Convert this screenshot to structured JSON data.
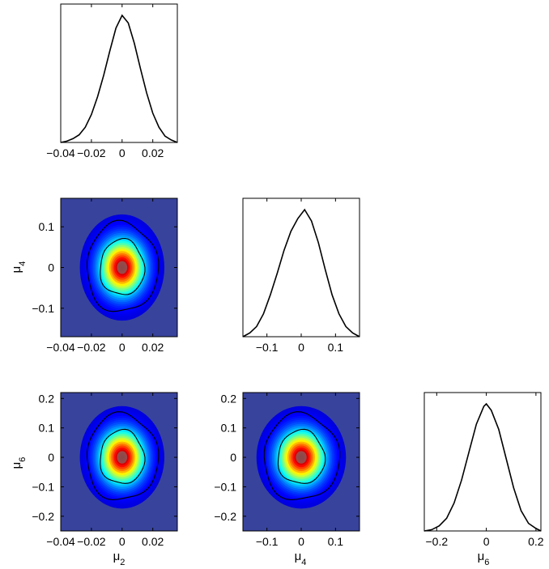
{
  "chart_data": [
    {
      "type": "line",
      "panel": "1D marginal mu2",
      "xlim": [
        -0.04,
        0.036
      ],
      "xticks": [
        -0.04,
        -0.02,
        0,
        0.02
      ],
      "xtick_labels": [
        "−0.04",
        "−0.02",
        "0",
        "0.02"
      ],
      "x": [
        -0.04,
        -0.036,
        -0.032,
        -0.028,
        -0.024,
        -0.02,
        -0.016,
        -0.012,
        -0.008,
        -0.004,
        0,
        0.004,
        0.008,
        0.012,
        0.016,
        0.02,
        0.024,
        0.028,
        0.032,
        0.036
      ],
      "y": [
        0.0,
        0.01,
        0.03,
        0.06,
        0.12,
        0.22,
        0.36,
        0.53,
        0.72,
        0.9,
        1.0,
        0.94,
        0.78,
        0.58,
        0.39,
        0.23,
        0.12,
        0.05,
        0.02,
        0.0
      ]
    },
    {
      "type": "line",
      "panel": "1D marginal mu4",
      "xlim": [
        -0.17,
        0.17
      ],
      "xticks": [
        -0.1,
        0,
        0.1
      ],
      "xtick_labels": [
        "−0.1",
        "0",
        "0.1"
      ],
      "x": [
        -0.17,
        -0.15,
        -0.13,
        -0.11,
        -0.09,
        -0.07,
        -0.05,
        -0.03,
        -0.01,
        0.01,
        0.03,
        0.05,
        0.07,
        0.09,
        0.11,
        0.13,
        0.15,
        0.17
      ],
      "y": [
        0.0,
        0.03,
        0.08,
        0.18,
        0.33,
        0.5,
        0.68,
        0.83,
        0.93,
        1.0,
        0.91,
        0.74,
        0.53,
        0.33,
        0.18,
        0.08,
        0.03,
        0.0
      ]
    },
    {
      "type": "line",
      "panel": "1D marginal mu6",
      "xlim": [
        -0.25,
        0.22
      ],
      "xticks": [
        -0.2,
        0,
        0.2
      ],
      "xtick_labels": [
        "−0.2",
        "0",
        "0.2"
      ],
      "x": [
        -0.25,
        -0.22,
        -0.19,
        -0.16,
        -0.13,
        -0.1,
        -0.07,
        -0.04,
        -0.01,
        0.0,
        0.02,
        0.05,
        0.08,
        0.11,
        0.14,
        0.17,
        0.2,
        0.22
      ],
      "y": [
        0.0,
        0.01,
        0.04,
        0.1,
        0.22,
        0.4,
        0.62,
        0.84,
        0.98,
        1.0,
        0.95,
        0.8,
        0.57,
        0.34,
        0.16,
        0.06,
        0.02,
        0.0
      ]
    },
    {
      "type": "heatmap",
      "panel": "2D mu2 vs mu4",
      "xlim": [
        -0.04,
        0.036
      ],
      "ylim": [
        -0.17,
        0.17
      ],
      "xticks": [
        -0.04,
        -0.02,
        0,
        0.02
      ],
      "xtick_labels": [
        "−0.04",
        "−0.02",
        "0",
        "0.02"
      ],
      "yticks": [
        0.1,
        0,
        -0.1
      ],
      "ytick_labels": [
        "0.1",
        "0",
        "−0.1"
      ],
      "center": [
        0.0,
        0.0
      ],
      "sigma": [
        0.0095,
        0.045
      ],
      "contours": [
        "68%",
        "95%"
      ]
    },
    {
      "type": "heatmap",
      "panel": "2D mu2 vs mu6",
      "xlim": [
        -0.04,
        0.036
      ],
      "ylim": [
        -0.25,
        0.22
      ],
      "xticks": [
        -0.04,
        -0.02,
        0,
        0.02
      ],
      "xtick_labels": [
        "−0.04",
        "−0.02",
        "0",
        "0.02"
      ],
      "yticks": [
        0.2,
        0.1,
        0,
        -0.1,
        -0.2
      ],
      "ytick_labels": [
        "0.2",
        "0.1",
        "0",
        "−0.1",
        "−0.2"
      ],
      "center": [
        0.0,
        0.0
      ],
      "sigma": [
        0.0095,
        0.06
      ],
      "contours": [
        "68%",
        "95%"
      ]
    },
    {
      "type": "heatmap",
      "panel": "2D mu4 vs mu6",
      "xlim": [
        -0.17,
        0.17
      ],
      "ylim": [
        -0.25,
        0.22
      ],
      "xticks": [
        -0.1,
        0,
        0.1
      ],
      "xtick_labels": [
        "−0.1",
        "0",
        "0.1"
      ],
      "yticks": [
        0.2,
        0.1,
        0,
        -0.1,
        -0.2
      ],
      "ytick_labels": [
        "0.2",
        "0.1",
        "0",
        "−0.1",
        "−0.2"
      ],
      "center": [
        0.0,
        0.0
      ],
      "sigma": [
        0.045,
        0.06
      ],
      "contours": [
        "68%",
        "95%"
      ]
    }
  ],
  "labels": {
    "mu2_base": "μ",
    "mu2_sub": "2",
    "mu4_base": "μ",
    "mu4_sub": "4",
    "mu6_base": "μ",
    "mu6_sub": "6"
  },
  "colors": {
    "background": "#38439c",
    "frame": "#000000",
    "curve": "#000000"
  },
  "colormap": "jet"
}
